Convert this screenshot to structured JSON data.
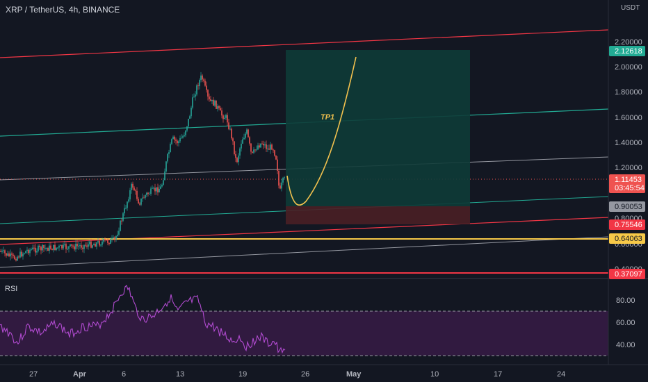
{
  "header": {
    "title": "XRP / TetherUS, 4h, BINANCE",
    "currency": "USDT"
  },
  "colors": {
    "background": "#131722",
    "up": "#26a69a",
    "down": "#ef5350",
    "channel_red": "#f23645",
    "channel_teal": "#22ab94",
    "channel_gray": "#9598a1",
    "support_yellow": "#f7c948",
    "projection": "#f2c14e",
    "rsi": "#b24bd1",
    "rsi_band": "#4a1e5a",
    "target_zone": "#0e3b37",
    "stop_zone": "#4a1f25"
  },
  "price_axis": {
    "ticks": [
      "2.20000",
      "2.00000",
      "1.80000",
      "1.60000",
      "1.40000",
      "1.20000",
      "0.80000",
      "0.60000",
      "0.40000"
    ]
  },
  "price_tags": [
    {
      "value": "2.12618",
      "bg": "#22ab94",
      "fg": "#ffffff"
    },
    {
      "value": "1.11453",
      "bg": "#ef5350",
      "fg": "#ffffff"
    },
    {
      "value": "03:45:54",
      "bg": "#ef5350",
      "fg": "#ffffff"
    },
    {
      "value": "0.90053",
      "bg": "#9598a1",
      "fg": "#131722"
    },
    {
      "value": "0.75546",
      "bg": "#f23645",
      "fg": "#ffffff"
    },
    {
      "value": "0.64063",
      "bg": "#f7c948",
      "fg": "#131722"
    },
    {
      "value": "0.37097",
      "bg": "#f23645",
      "fg": "#ffffff"
    }
  ],
  "time_axis": {
    "ticks": [
      "27",
      "Apr",
      "6",
      "13",
      "19",
      "26",
      "May",
      "10",
      "17",
      "24"
    ]
  },
  "annotation": {
    "tp_label": "TP1"
  },
  "rsi": {
    "label": "RSI",
    "ticks": [
      "80.00",
      "60.00",
      "40.00"
    ]
  }
}
